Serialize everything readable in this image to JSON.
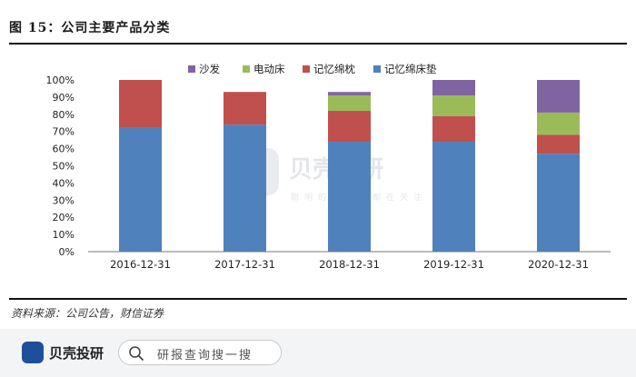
{
  "header": {
    "title": "图 15：公司主要产品分类"
  },
  "footer_note": {
    "source": "资料来源：公司公告，财信证券"
  },
  "watermark": {
    "brand": "贝壳投研",
    "tagline": "聪明的投资者都在关注"
  },
  "bottom_bar": {
    "brand": "贝壳投研",
    "search_placeholder": "研报查询搜一搜",
    "logo_color": "#1f4f9a"
  },
  "chart_data": {
    "type": "bar",
    "stacked": true,
    "percent": true,
    "categories": [
      "2016-12-31",
      "2017-12-31",
      "2018-12-31",
      "2019-12-31",
      "2020-12-31"
    ],
    "y_ticks": [
      "0%",
      "10%",
      "20%",
      "30%",
      "40%",
      "50%",
      "60%",
      "70%",
      "80%",
      "90%",
      "100%"
    ],
    "ylim": [
      0,
      100
    ],
    "grid": false,
    "legend_position": "top",
    "legend_order": [
      "沙发",
      "电动床",
      "记忆绵枕",
      "记忆绵床垫"
    ],
    "series": [
      {
        "name": "记忆绵床垫",
        "color": "#4f81bd",
        "values": [
          72,
          74,
          64,
          64,
          57
        ]
      },
      {
        "name": "记忆绵枕",
        "color": "#c0504d",
        "values": [
          28,
          19,
          18,
          15,
          11
        ]
      },
      {
        "name": "电动床",
        "color": "#9bbb59",
        "values": [
          0,
          0,
          9,
          12,
          13
        ]
      },
      {
        "name": "沙发",
        "color": "#8064a2",
        "values": [
          0,
          0,
          2,
          9,
          19
        ]
      }
    ]
  }
}
